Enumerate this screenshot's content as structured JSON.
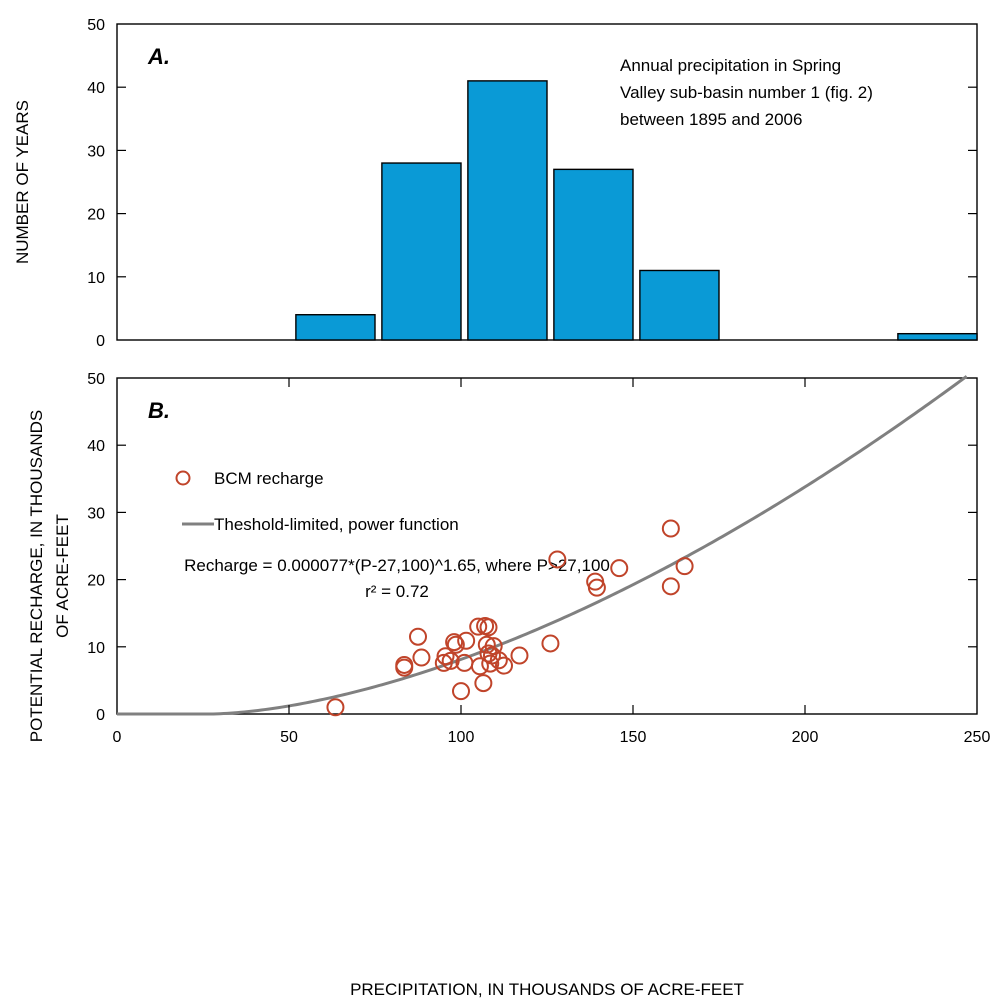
{
  "chart_data": [
    {
      "panel": "A.",
      "type": "bar",
      "annotation_lines": [
        "Annual precipitation in Spring",
        "Valley sub-basin number 1 (fig. 2)",
        "between 1895 and 2006"
      ],
      "ylabel": "NUMBER OF YEARS",
      "ylim": [
        0,
        50
      ],
      "yticks": [
        "0",
        "10",
        "20",
        "30",
        "40",
        "50"
      ],
      "xlim": [
        0,
        250
      ],
      "bars": [
        {
          "x0": 52,
          "x1": 75,
          "value": 4
        },
        {
          "x0": 77,
          "x1": 100,
          "value": 28
        },
        {
          "x0": 102,
          "x1": 125,
          "value": 41
        },
        {
          "x0": 127,
          "x1": 150,
          "value": 27
        },
        {
          "x0": 152,
          "x1": 175,
          "value": 11
        },
        {
          "x0": 227,
          "x1": 250,
          "value": 1
        }
      ],
      "bar_color": "#0a9ad6"
    },
    {
      "panel": "B.",
      "type": "scatter",
      "ylabel_lines": [
        "POTENTIAL RECHARGE, IN THOUSANDS",
        "OF ACRE-FEET"
      ],
      "xlabel": "PRECIPITATION, IN THOUSANDS OF ACRE-FEET",
      "xlim": [
        0,
        250
      ],
      "ylim": [
        0,
        50
      ],
      "xticks": [
        "0",
        "50",
        "100",
        "150",
        "200",
        "250"
      ],
      "yticks": [
        "0",
        "10",
        "20",
        "30",
        "40",
        "50"
      ],
      "legend": {
        "points_label": "BCM recharge",
        "line_label": "Theshold-limited, power function"
      },
      "equation": "Recharge = 0.000077*(P-27,100)^1.65, where P>27,100",
      "r_squared": "r² = 0.72",
      "point_color": "#c0442a",
      "line_color": "#808080",
      "fit": {
        "coef": 7.7e-05,
        "threshold": 27.1,
        "exponent": 1.65
      },
      "points": [
        [
          63.5,
          1.0
        ],
        [
          83.5,
          6.9
        ],
        [
          83.5,
          7.3
        ],
        [
          87.5,
          11.5
        ],
        [
          88.5,
          8.4
        ],
        [
          95.0,
          7.6
        ],
        [
          95.5,
          8.6
        ],
        [
          97.0,
          7.9
        ],
        [
          98.0,
          10.7
        ],
        [
          98.5,
          10.3
        ],
        [
          100.0,
          3.4
        ],
        [
          101.0,
          7.6
        ],
        [
          101.5,
          10.9
        ],
        [
          105.0,
          13.0
        ],
        [
          105.5,
          7.1
        ],
        [
          106.5,
          4.6
        ],
        [
          107.0,
          13.1
        ],
        [
          107.5,
          10.3
        ],
        [
          108.0,
          12.9
        ],
        [
          108.0,
          9.0
        ],
        [
          108.5,
          7.5
        ],
        [
          109.0,
          8.7
        ],
        [
          109.5,
          10.1
        ],
        [
          111.0,
          8.0
        ],
        [
          112.5,
          7.2
        ],
        [
          117.0,
          8.7
        ],
        [
          126.0,
          10.5
        ],
        [
          128.0,
          23.0
        ],
        [
          139.0,
          19.7
        ],
        [
          139.5,
          18.8
        ],
        [
          146.0,
          21.7
        ],
        [
          161.0,
          27.6
        ],
        [
          161.0,
          19.0
        ],
        [
          165.0,
          22.0
        ]
      ]
    }
  ]
}
